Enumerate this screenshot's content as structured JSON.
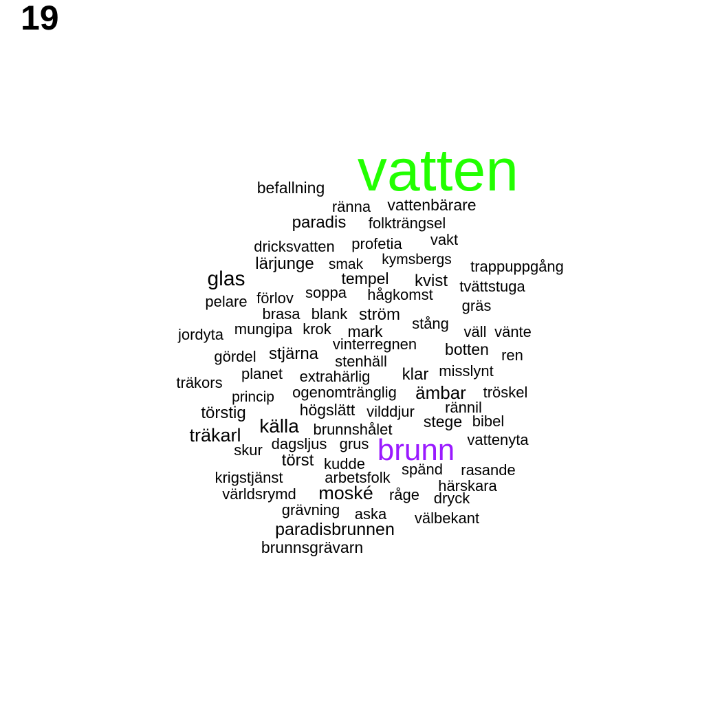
{
  "page_number": "19",
  "colors": {
    "default": "#000000",
    "highlight_primary": "#22ff00",
    "highlight_secondary": "#9a1aff"
  },
  "words": [
    {
      "text": "vatten",
      "color": "#22ff00"
    },
    {
      "text": "befallning"
    },
    {
      "text": "ränna"
    },
    {
      "text": "vattenbärare"
    },
    {
      "text": "paradis"
    },
    {
      "text": "folkträngsel"
    },
    {
      "text": "dricksvatten"
    },
    {
      "text": "profetia"
    },
    {
      "text": "vakt"
    },
    {
      "text": "lärjunge"
    },
    {
      "text": "smak"
    },
    {
      "text": "kymsbergs"
    },
    {
      "text": "trappuppgång"
    },
    {
      "text": "glas"
    },
    {
      "text": "tempel"
    },
    {
      "text": "kvist"
    },
    {
      "text": "tvättstuga"
    },
    {
      "text": "pelare"
    },
    {
      "text": "förlov"
    },
    {
      "text": "soppa"
    },
    {
      "text": "hågkomst"
    },
    {
      "text": "gräs"
    },
    {
      "text": "brasa"
    },
    {
      "text": "blank"
    },
    {
      "text": "ström"
    },
    {
      "text": "stång"
    },
    {
      "text": "jordyta"
    },
    {
      "text": "mungipa"
    },
    {
      "text": "krok"
    },
    {
      "text": "mark"
    },
    {
      "text": "väll"
    },
    {
      "text": "vänte"
    },
    {
      "text": "vinterregnen"
    },
    {
      "text": "gördel"
    },
    {
      "text": "stjärna"
    },
    {
      "text": "botten"
    },
    {
      "text": "ren"
    },
    {
      "text": "stenhäll"
    },
    {
      "text": "träkors"
    },
    {
      "text": "planet"
    },
    {
      "text": "extrahärlig"
    },
    {
      "text": "klar"
    },
    {
      "text": "misslynt"
    },
    {
      "text": "princip"
    },
    {
      "text": "ogenomtränglig"
    },
    {
      "text": "ämbar"
    },
    {
      "text": "tröskel"
    },
    {
      "text": "törstig"
    },
    {
      "text": "högslätt"
    },
    {
      "text": "vilddjur"
    },
    {
      "text": "rännil"
    },
    {
      "text": "källa"
    },
    {
      "text": "stege"
    },
    {
      "text": "bibel"
    },
    {
      "text": "träkarl"
    },
    {
      "text": "brunnshålet"
    },
    {
      "text": "dagsljus"
    },
    {
      "text": "grus"
    },
    {
      "text": "vattenyta"
    },
    {
      "text": "brunn",
      "color": "#9a1aff"
    },
    {
      "text": "skur"
    },
    {
      "text": "törst"
    },
    {
      "text": "kudde"
    },
    {
      "text": "spänd"
    },
    {
      "text": "rasande"
    },
    {
      "text": "krigstjänst"
    },
    {
      "text": "arbetsfolk"
    },
    {
      "text": "härskara"
    },
    {
      "text": "världsrymd"
    },
    {
      "text": "moské"
    },
    {
      "text": "råge"
    },
    {
      "text": "dryck"
    },
    {
      "text": "grävning"
    },
    {
      "text": "aska"
    },
    {
      "text": "välbekant"
    },
    {
      "text": "paradisbrunnen"
    },
    {
      "text": "brunnsgrävarn"
    }
  ]
}
